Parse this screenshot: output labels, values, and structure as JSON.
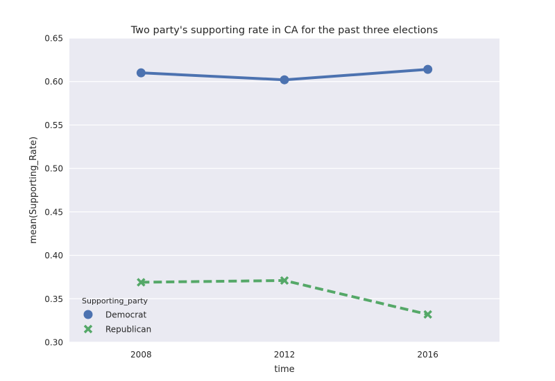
{
  "chart_data": {
    "type": "line",
    "title": "Two party's supporting rate in CA for the past three elections",
    "xlabel": "time",
    "ylabel": "mean(Supporting_Rate)",
    "categories": [
      "2008",
      "2012",
      "2016"
    ],
    "ylim": [
      0.3,
      0.65
    ],
    "yticks": [
      "0.30",
      "0.35",
      "0.40",
      "0.45",
      "0.50",
      "0.55",
      "0.60",
      "0.65"
    ],
    "grid": true,
    "legend": {
      "title": "Supporting_party",
      "placement": "lower-left"
    },
    "series": [
      {
        "name": "Democrat",
        "values": [
          0.61,
          0.602,
          0.614
        ],
        "color": "#4c72b0",
        "marker": "circle",
        "line": "solid"
      },
      {
        "name": "Republican",
        "values": [
          0.369,
          0.371,
          0.332
        ],
        "color": "#55a868",
        "marker": "x",
        "line": "dashed"
      }
    ]
  }
}
